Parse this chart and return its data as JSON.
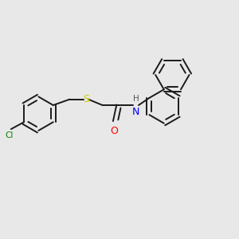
{
  "background_color": "#e8e8e8",
  "bond_color": "#1a1a1a",
  "atom_colors": {
    "Cl": "#008000",
    "S": "#cccc00",
    "O": "#ff0000",
    "N": "#0000ff",
    "H": "#555555"
  },
  "figsize": [
    3.0,
    3.0
  ],
  "dpi": 100,
  "lw": 1.4,
  "r": 0.72
}
